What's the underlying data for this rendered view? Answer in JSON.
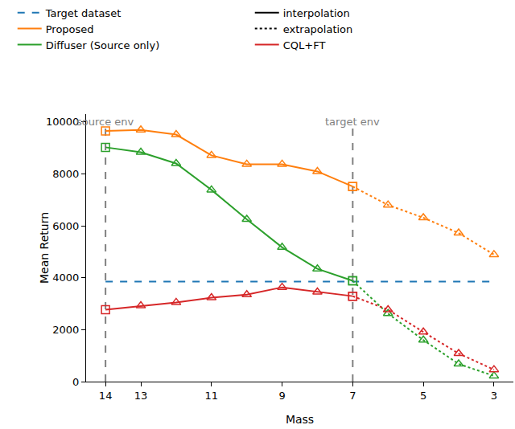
{
  "chart_data": {
    "type": "line",
    "x_label": "Mass",
    "y_label": "Mean Return",
    "x": [
      14,
      13,
      12,
      11,
      10,
      9,
      8,
      7,
      6,
      5,
      4,
      3
    ],
    "xlim": [
      14.55,
      2.45
    ],
    "xticks": [
      14,
      13,
      11,
      9,
      7,
      5,
      3
    ],
    "ylim": [
      0,
      10300
    ],
    "yticks": [
      0,
      2000,
      4000,
      6000,
      8000,
      10000
    ],
    "grid": false,
    "series": [
      {
        "name": "Target dataset",
        "color": "#1f77b4",
        "line_style": "dash",
        "marker": "none",
        "values": [
          3850,
          3850,
          3850,
          3850,
          3850,
          3850,
          3850,
          3850,
          3850,
          3850,
          3850,
          3850
        ]
      },
      {
        "name": "Proposed",
        "color": "#ff7f0e",
        "line_style": "solid",
        "marker": "triangle",
        "values": [
          9650,
          9690,
          9510,
          8710,
          8370,
          8370,
          8090,
          7510,
          6800,
          6310,
          5720,
          4890
        ]
      },
      {
        "name": "Diffuser (Source only)",
        "color": "#2ca02c",
        "line_style": "solid",
        "marker": "triangle",
        "values": [
          9020,
          8830,
          8400,
          7380,
          6250,
          5170,
          4340,
          3880,
          2620,
          1600,
          680,
          220
        ]
      },
      {
        "name": "CQL+FT",
        "color": "#d62728",
        "line_style": "solid",
        "marker": "triangle",
        "values": [
          2770,
          2920,
          3050,
          3230,
          3350,
          3630,
          3450,
          3290,
          2770,
          1910,
          1080,
          460
        ]
      }
    ],
    "style_legend": [
      {
        "name": "interpolation",
        "line_style": "solid"
      },
      {
        "name": "extrapolation",
        "line_style": "dot"
      }
    ],
    "annotations": [
      {
        "text": "source env",
        "x": 14
      },
      {
        "text": "target env",
        "x": 7
      }
    ]
  }
}
